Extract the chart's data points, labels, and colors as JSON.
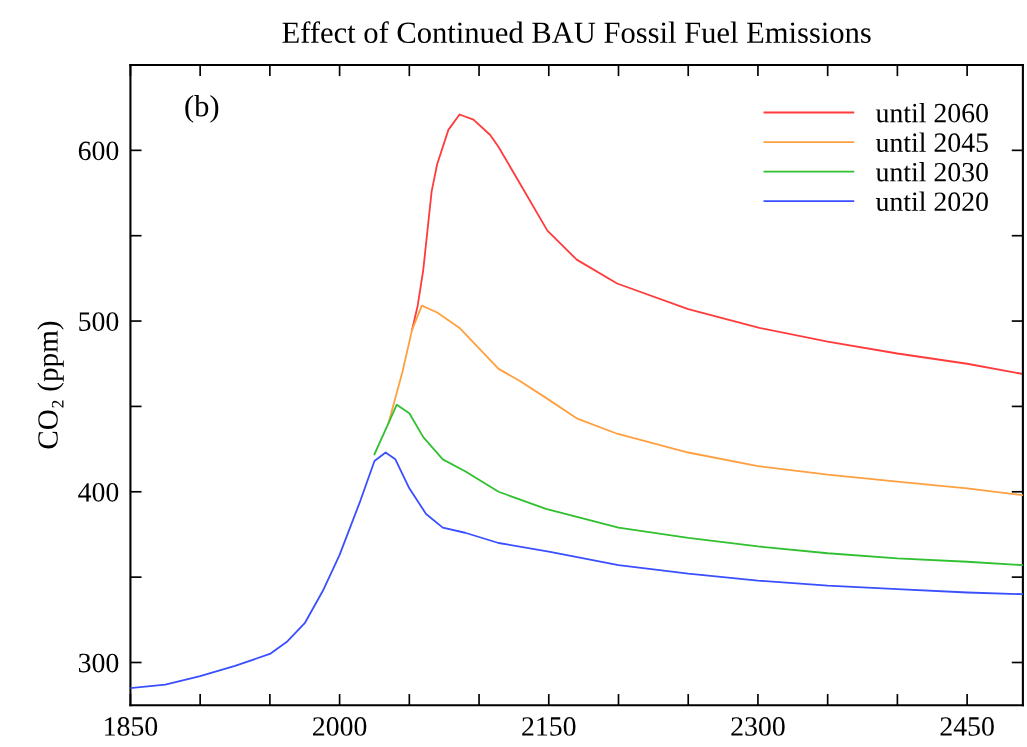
{
  "chart_data": {
    "type": "line",
    "title": "Effect of Continued BAU Fossil Fuel Emissions",
    "ylabel": "CO₂ (ppm)",
    "annotations": [
      "(b)"
    ],
    "xlim": [
      1850,
      2490
    ],
    "ylim": [
      275,
      650
    ],
    "xticks": [
      1850,
      {
        "value": 1900,
        "label": null
      },
      {
        "value": 1950,
        "label": null
      },
      2000,
      {
        "value": 2050,
        "label": null
      },
      {
        "value": 2100,
        "label": null
      },
      2150,
      {
        "value": 2200,
        "label": null
      },
      {
        "value": 2250,
        "label": null
      },
      2300,
      {
        "value": 2350,
        "label": null
      },
      {
        "value": 2400,
        "label": null
      },
      2450
    ],
    "yticks": [
      300,
      {
        "value": 350,
        "label": null
      },
      400,
      {
        "value": 450,
        "label": null
      },
      500,
      {
        "value": 550,
        "label": null
      },
      600
    ],
    "grid": false,
    "legend": "top right",
    "line_style": "solid",
    "marker": "none",
    "series": [
      {
        "name": "until 2060",
        "color": "#ff3b3b",
        "x": [
          2052,
          2056,
          2060,
          2066,
          2070,
          2078,
          2086,
          2096,
          2108,
          2114,
          2129,
          2149,
          2170,
          2199,
          2250,
          2301,
          2350,
          2400,
          2450,
          2490
        ],
        "values": [
          495,
          509,
          530,
          576,
          592,
          612,
          621,
          618,
          609,
          602,
          581,
          553,
          536,
          522,
          507,
          496,
          488,
          481,
          475,
          469
        ]
      },
      {
        "name": "until 2045",
        "color": "#ffa040",
        "x": [
          2035,
          2045,
          2052,
          2059,
          2070,
          2086,
          2100,
          2114,
          2129,
          2148,
          2170,
          2199,
          2250,
          2300,
          2350,
          2400,
          2450,
          2490
        ],
        "values": [
          440,
          470,
          495,
          509,
          505,
          496,
          484,
          472,
          465,
          455,
          443,
          434,
          423,
          415,
          410,
          406,
          402,
          398
        ]
      },
      {
        "name": "until 2030",
        "color": "#30c030",
        "x": [
          2025,
          2035,
          2041,
          2050,
          2060,
          2074,
          2090,
          2114,
          2148,
          2200,
          2250,
          2300,
          2350,
          2400,
          2450,
          2490
        ],
        "values": [
          422,
          440,
          451,
          446,
          432,
          419,
          412,
          400,
          390,
          379,
          373,
          368,
          364,
          361,
          359,
          357
        ]
      },
      {
        "name": "until 2020",
        "color": "#3a4fff",
        "x": [
          1850,
          1875,
          1900,
          1925,
          1950,
          1962,
          1975,
          1988,
          2000,
          2015,
          2025,
          2033,
          2040,
          2050,
          2062,
          2074,
          2090,
          2114,
          2150,
          2200,
          2250,
          2300,
          2350,
          2400,
          2450,
          2490
        ],
        "values": [
          285,
          287,
          292,
          298,
          305,
          312,
          323,
          342,
          363,
          395,
          418,
          423,
          419,
          402,
          387,
          379,
          376,
          370,
          365,
          357,
          352,
          348,
          345,
          343,
          341,
          340
        ]
      }
    ]
  }
}
